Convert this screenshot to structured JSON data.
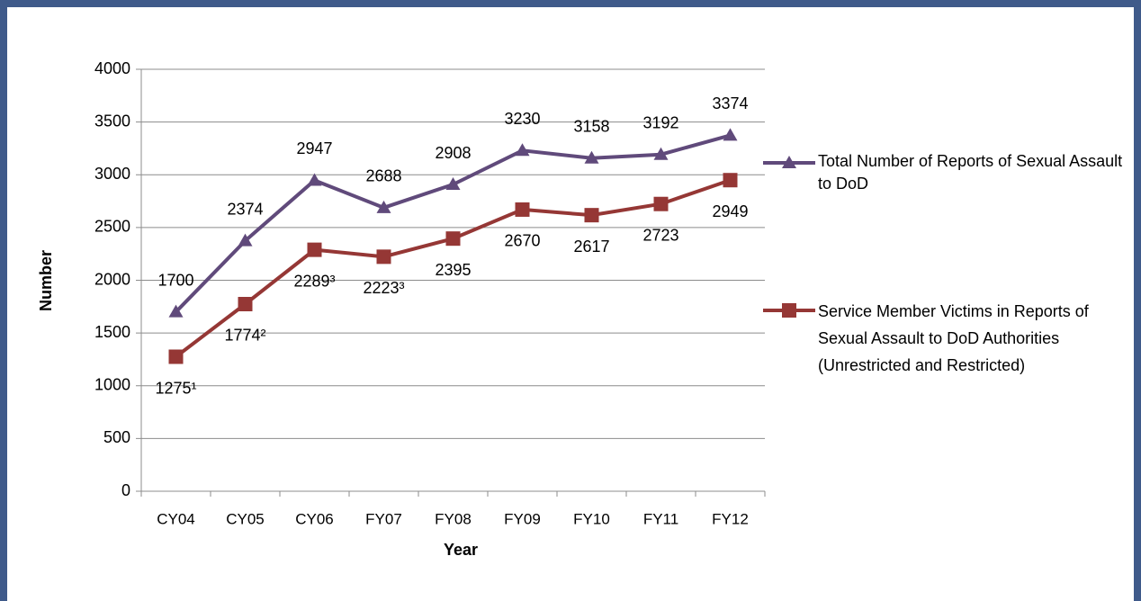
{
  "chart_data": {
    "type": "line",
    "x_label": "Year",
    "y_label": "Number",
    "categories": [
      "CY04",
      "CY05",
      "CY06",
      "FY07",
      "FY08",
      "FY09",
      "FY10",
      "FY11",
      "FY12"
    ],
    "series": [
      {
        "name": "Total Number of Reports of Sexual Assault to DoD",
        "color": "#604a7b",
        "marker": "triangle",
        "values": [
          1700,
          2374,
          2947,
          2688,
          2908,
          3230,
          3158,
          3192,
          3374
        ]
      },
      {
        "name": "Service Member Victims in Reports of Sexual Assault to DoD Authorities\n(Unrestricted and Restricted)",
        "color": "#953735",
        "marker": "square",
        "values": [
          1275,
          1774,
          2289,
          2223,
          2395,
          2670,
          2617,
          2723,
          2949
        ],
        "value_labels": [
          "1275¹",
          "1774²",
          "2289³",
          "2223³",
          "2395",
          "2670",
          "2617",
          "2723",
          "2949"
        ]
      }
    ],
    "ylim": [
      0,
      4000
    ],
    "yticks": [
      0,
      500,
      1000,
      1500,
      2000,
      2500,
      3000,
      3500,
      4000
    ],
    "grid": true
  }
}
